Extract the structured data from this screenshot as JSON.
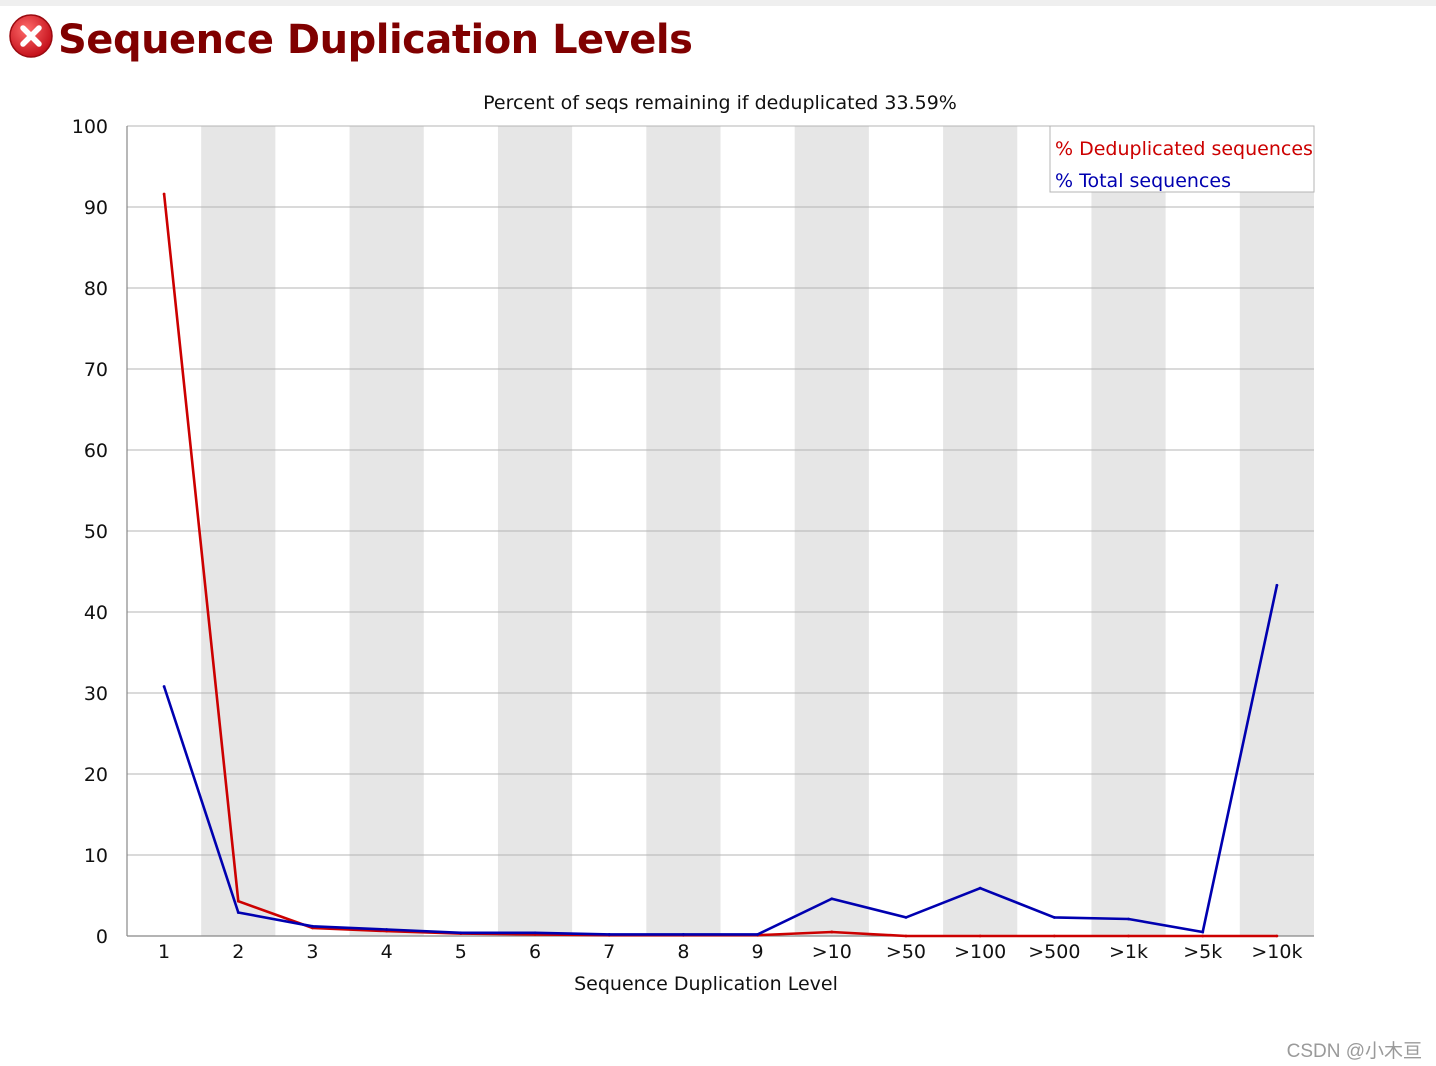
{
  "header": {
    "title": "Sequence Duplication Levels",
    "status_icon": "fail-cross-icon",
    "status_color": "#e8202a"
  },
  "watermark": "CSDN @小木亘",
  "chart_data": {
    "type": "line",
    "title": "Percent of seqs remaining if deduplicated 33.59%",
    "xlabel": "Sequence Duplication Level",
    "ylabel": "",
    "ylim": [
      0,
      100
    ],
    "yticks": [
      0,
      10,
      20,
      30,
      40,
      50,
      60,
      70,
      80,
      90,
      100
    ],
    "categories": [
      "1",
      "2",
      "3",
      "4",
      "5",
      "6",
      "7",
      "8",
      "9",
      ">10",
      ">50",
      ">100",
      ">500",
      ">1k",
      ">5k",
      ">10k"
    ],
    "alternating_column_shading": true,
    "grid": "horizontal",
    "legend_placement": "top-right",
    "series": [
      {
        "name": "% Deduplicated sequences",
        "color": "#cc0000",
        "values": [
          91.6,
          4.3,
          1.0,
          0.6,
          0.3,
          0.2,
          0.1,
          0.1,
          0.1,
          0.5,
          0.0,
          0.0,
          0.0,
          0.0,
          0.0,
          0.0
        ]
      },
      {
        "name": "% Total sequences",
        "color": "#0000b0",
        "values": [
          30.8,
          2.9,
          1.2,
          0.8,
          0.4,
          0.4,
          0.2,
          0.2,
          0.2,
          4.6,
          2.3,
          5.9,
          2.3,
          2.1,
          0.5,
          43.3
        ]
      }
    ]
  }
}
